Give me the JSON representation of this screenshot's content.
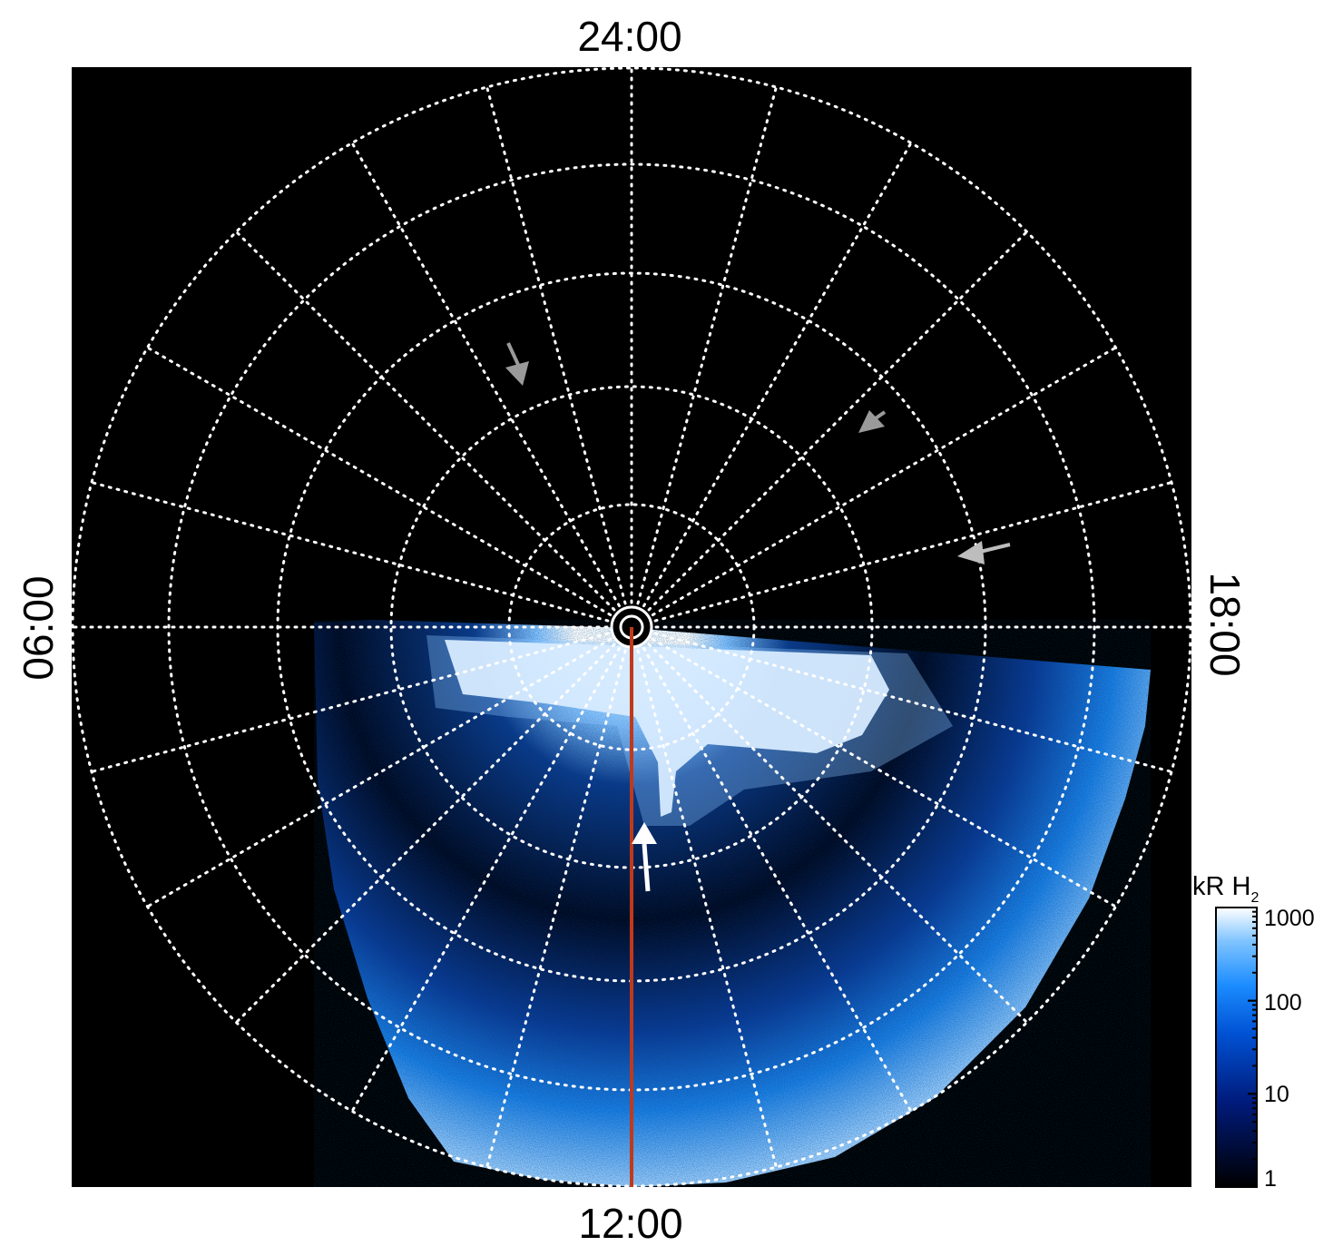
{
  "local_time_labels": {
    "top": "24:00",
    "bottom": "12:00",
    "left": "06:00",
    "right": "18:00"
  },
  "colorbar": {
    "unit_prefix": "kR H",
    "unit_subscript": "2",
    "tick_labels": [
      "1000",
      "100",
      "10",
      "1"
    ],
    "scale": "log",
    "range": [
      1,
      1000
    ]
  },
  "colors": {
    "background": "#000000",
    "grid": "#ffffff",
    "highlight_line": "#c0391b",
    "arrow_white": "#ffffff",
    "arrow_gray": "#9a9a9a"
  }
}
